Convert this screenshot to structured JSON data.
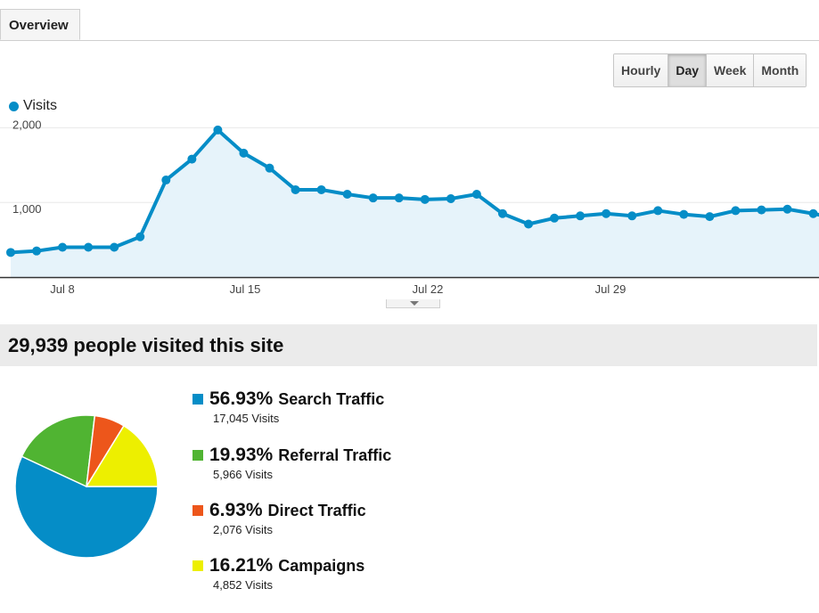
{
  "tabs": [
    {
      "label": "Overview"
    }
  ],
  "period_buttons": [
    {
      "label": "Hourly",
      "active": false
    },
    {
      "label": "Day",
      "active": true
    },
    {
      "label": "Week",
      "active": false
    },
    {
      "label": "Month",
      "active": false
    }
  ],
  "summary": {
    "headline": "29,939 people visited this site"
  },
  "colors": {
    "visits": "#058dc7",
    "area_fill": "#e6f3fa",
    "search": "#058dc7",
    "referral": "#50b432",
    "direct": "#ed561b",
    "campaigns": "#edef00"
  },
  "breakdown": [
    {
      "percent": "56.93%",
      "label": "Search Traffic",
      "visits": "17,045 Visits",
      "color": "#058dc7",
      "icon": "blue-square-icon"
    },
    {
      "percent": "19.93%",
      "label": "Referral Traffic",
      "visits": "5,966 Visits",
      "color": "#50b432",
      "icon": "green-square-icon"
    },
    {
      "percent": "6.93%",
      "label": "Direct Traffic",
      "visits": "2,076 Visits",
      "color": "#ed561b",
      "icon": "orange-square-icon"
    },
    {
      "percent": "16.21%",
      "label": "Campaigns",
      "visits": "4,852 Visits",
      "color": "#edef00",
      "icon": "yellow-square-icon"
    }
  ],
  "chart_data": [
    {
      "type": "area",
      "legend": [
        "Visits"
      ],
      "x_tick_labels": [
        "Jul 8",
        "Jul 15",
        "Jul 22",
        "Jul 29"
      ],
      "y_tick_labels": [
        "1,000",
        "2,000"
      ],
      "x": [
        "Jul 7",
        "Jul 8",
        "Jul 9",
        "Jul 10",
        "Jul 11",
        "Jul 12",
        "Jul 13",
        "Jul 14",
        "Jul 15",
        "Jul 16",
        "Jul 17",
        "Jul 18",
        "Jul 19",
        "Jul 20",
        "Jul 21",
        "Jul 22",
        "Jul 23",
        "Jul 24",
        "Jul 25",
        "Jul 26",
        "Jul 27",
        "Jul 28",
        "Jul 29",
        "Jul 30",
        "Jul 31",
        "Aug 1",
        "Aug 2",
        "Aug 3",
        "Aug 4",
        "Aug 5",
        "Aug 6",
        "Aug 7",
        "Aug 8"
      ],
      "series": [
        {
          "name": "Visits",
          "values": [
            330,
            350,
            400,
            400,
            400,
            540,
            1300,
            1580,
            1970,
            1660,
            1460,
            1170,
            1170,
            1110,
            1060,
            1060,
            1040,
            1050,
            1110,
            850,
            710,
            790,
            820,
            850,
            820,
            890,
            840,
            810,
            890,
            900,
            910,
            850,
            780
          ]
        }
      ],
      "ylim": [
        0,
        2000
      ],
      "grid": true
    },
    {
      "type": "pie",
      "categories": [
        "Search Traffic",
        "Referral Traffic",
        "Direct Traffic",
        "Campaigns"
      ],
      "values": [
        56.93,
        19.93,
        6.93,
        16.21
      ]
    }
  ]
}
